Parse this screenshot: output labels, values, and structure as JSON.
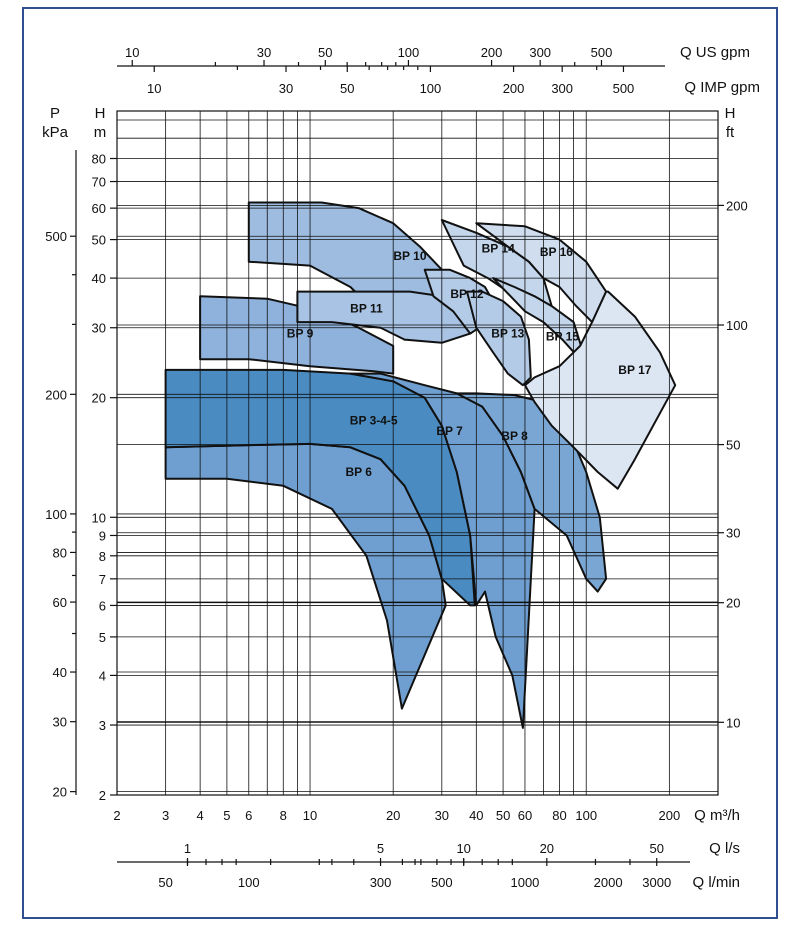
{
  "chart_data": {
    "type": "area",
    "title": "",
    "x_axes": {
      "bottom_primary": {
        "unit": "Q m³/h",
        "scale": "log",
        "range": [
          2,
          300
        ],
        "ticks": [
          "2",
          "3",
          "4",
          "5",
          "6",
          "8",
          "10",
          "20",
          "30",
          "40",
          "50",
          "60",
          "80",
          "100",
          "200"
        ]
      },
      "bottom_ls": {
        "unit": "Q l/s",
        "ticks": [
          "1",
          "5",
          "10",
          "20",
          "50"
        ]
      },
      "bottom_lmin": {
        "unit": "Q l/min",
        "ticks": [
          "50",
          "100",
          "300",
          "500",
          "1000",
          "2000",
          "3000"
        ]
      },
      "top_us": {
        "unit": "Q US gpm",
        "ticks": [
          "10",
          "30",
          "50",
          "100",
          "200",
          "300",
          "500"
        ]
      },
      "top_imp": {
        "unit": "Q IMP gpm",
        "ticks": [
          "10",
          "30",
          "50",
          "100",
          "200",
          "300",
          "500"
        ]
      }
    },
    "y_axes": {
      "left_pressure": {
        "unit_top": "P",
        "unit_bottom": "kPa",
        "ticks": [
          "20",
          "30",
          "40",
          "60",
          "80",
          "100",
          "200",
          "500"
        ]
      },
      "left_head": {
        "unit_top": "H",
        "unit_bottom": "m",
        "scale": "log",
        "range": [
          2,
          100
        ],
        "ticks": [
          "2",
          "3",
          "4",
          "5",
          "6",
          "7",
          "8",
          "9",
          "10",
          "20",
          "30",
          "40",
          "50",
          "60",
          "70",
          "80"
        ]
      },
      "right_head": {
        "unit_top": "H",
        "unit_bottom": "ft",
        "ticks": [
          "10",
          "20",
          "30",
          "50",
          "100",
          "200"
        ]
      }
    },
    "series": [
      {
        "name": "BP 6",
        "color": "#6f9fd0",
        "label_at": [
          15,
          13
        ],
        "outline": [
          [
            3,
            12.5
          ],
          [
            5,
            12.5
          ],
          [
            8,
            12
          ],
          [
            12,
            10.5
          ],
          [
            16,
            8
          ],
          [
            19,
            5.5
          ],
          [
            21.5,
            3.3
          ],
          [
            31,
            6
          ],
          [
            30,
            7
          ],
          [
            27,
            9
          ],
          [
            22,
            12
          ],
          [
            18,
            14
          ],
          [
            14,
            15
          ],
          [
            10,
            15.3
          ],
          [
            6,
            15.2
          ],
          [
            3,
            15
          ]
        ]
      },
      {
        "name": "BP 3-4-5",
        "color": "#4a8cc2",
        "label_at": [
          17,
          17.5
        ],
        "outline": [
          [
            3,
            15
          ],
          [
            6,
            15.2
          ],
          [
            10,
            15.3
          ],
          [
            14,
            15
          ],
          [
            18,
            14
          ],
          [
            22,
            12
          ],
          [
            27,
            9
          ],
          [
            30,
            7
          ],
          [
            38,
            6
          ],
          [
            39.5,
            6
          ],
          [
            38,
            9
          ],
          [
            34,
            13
          ],
          [
            30,
            17
          ],
          [
            26,
            20
          ],
          [
            20,
            22
          ],
          [
            14,
            23
          ],
          [
            8,
            23.5
          ],
          [
            3,
            23.5
          ]
        ]
      },
      {
        "name": "BP 7",
        "color": "#6f9fd0",
        "label_at": [
          32,
          16.5
        ],
        "outline": [
          [
            14,
            23
          ],
          [
            20,
            22
          ],
          [
            26,
            20
          ],
          [
            30,
            17
          ],
          [
            34,
            13
          ],
          [
            38,
            9
          ],
          [
            40,
            6
          ],
          [
            43,
            6.5
          ],
          [
            47,
            5
          ],
          [
            54,
            4
          ],
          [
            59,
            2.95
          ],
          [
            65,
            10.5
          ],
          [
            58,
            13
          ],
          [
            50,
            16
          ],
          [
            42,
            19
          ],
          [
            34,
            20.5
          ],
          [
            26,
            21.5
          ],
          [
            18,
            23
          ]
        ]
      },
      {
        "name": "BP 8",
        "color": "#7aa6d3",
        "label_at": [
          55,
          16
        ],
        "outline": [
          [
            34,
            20.5
          ],
          [
            42,
            19
          ],
          [
            50,
            16
          ],
          [
            58,
            13
          ],
          [
            65,
            10.5
          ],
          [
            85,
            9
          ],
          [
            100,
            7
          ],
          [
            110,
            6.5
          ],
          [
            118,
            7
          ],
          [
            112,
            10
          ],
          [
            100,
            13
          ],
          [
            85,
            17
          ],
          [
            70,
            19.5
          ],
          [
            55,
            20.3
          ],
          [
            40,
            20.5
          ]
        ]
      },
      {
        "name": "BP 9",
        "color": "#8fb2dc",
        "label_at": [
          9.2,
          29
        ],
        "outline": [
          [
            4,
            36
          ],
          [
            7,
            35.5
          ],
          [
            11,
            33
          ],
          [
            15,
            30
          ],
          [
            20,
            27
          ],
          [
            20,
            23
          ],
          [
            17,
            23.3
          ],
          [
            10,
            24
          ],
          [
            6,
            25
          ],
          [
            4,
            25
          ]
        ]
      },
      {
        "name": "BP 10",
        "color": "#9dbce0",
        "label_at": [
          23,
          45.5
        ],
        "outline": [
          [
            6,
            62
          ],
          [
            11,
            62
          ],
          [
            15,
            60
          ],
          [
            20,
            55
          ],
          [
            25,
            48
          ],
          [
            30,
            42
          ],
          [
            34,
            38
          ],
          [
            30,
            33
          ],
          [
            26,
            30
          ],
          [
            22,
            28
          ],
          [
            18,
            32
          ],
          [
            14,
            38
          ],
          [
            10,
            43
          ],
          [
            6,
            44
          ]
        ]
      },
      {
        "name": "BP 11",
        "color": "#a8c3e3",
        "label_at": [
          16,
          33.5
        ],
        "outline": [
          [
            9,
            37
          ],
          [
            17,
            37
          ],
          [
            23,
            37
          ],
          [
            30,
            36
          ],
          [
            37,
            34
          ],
          [
            43,
            31
          ],
          [
            38,
            29
          ],
          [
            30,
            27.5
          ],
          [
            22,
            28
          ],
          [
            18,
            30
          ],
          [
            12,
            31
          ],
          [
            9,
            31
          ]
        ]
      },
      {
        "name": "BP 12",
        "color": "#b3cbe7",
        "label_at": [
          37,
          36.5
        ],
        "outline": [
          [
            26,
            42
          ],
          [
            32,
            42
          ],
          [
            38,
            40
          ],
          [
            43,
            38
          ],
          [
            47,
            34
          ],
          [
            44,
            31
          ],
          [
            38,
            29
          ],
          [
            33,
            33
          ],
          [
            28,
            36
          ]
        ]
      },
      {
        "name": "BP 13",
        "color": "#b3cbe7",
        "label_at": [
          52,
          29
        ],
        "outline": [
          [
            37,
            37
          ],
          [
            42,
            37
          ],
          [
            50,
            35
          ],
          [
            58,
            32
          ],
          [
            62,
            28
          ],
          [
            63,
            22.5
          ],
          [
            59,
            21.5
          ],
          [
            52,
            23
          ],
          [
            46,
            26
          ],
          [
            40,
            30
          ]
        ]
      },
      {
        "name": "BP 14",
        "color": "#c4d6ec",
        "label_at": [
          48,
          47.5
        ],
        "outline": [
          [
            30,
            56
          ],
          [
            40,
            52
          ],
          [
            52,
            48
          ],
          [
            62,
            44
          ],
          [
            70,
            40
          ],
          [
            75,
            34
          ],
          [
            68,
            32
          ],
          [
            60,
            34
          ],
          [
            52,
            37
          ],
          [
            44,
            40
          ],
          [
            36,
            43
          ]
        ]
      },
      {
        "name": "BP 15",
        "color": "#c4d6ec",
        "label_at": [
          82,
          28.5
        ],
        "outline": [
          [
            46,
            40
          ],
          [
            55,
            38
          ],
          [
            65,
            36
          ],
          [
            75,
            34
          ],
          [
            90,
            31
          ],
          [
            105,
            22
          ],
          [
            95,
            25
          ],
          [
            82,
            28
          ],
          [
            70,
            31
          ],
          [
            60,
            33
          ]
        ]
      },
      {
        "name": "BP 16",
        "color": "#cfddef",
        "label_at": [
          78,
          46.5
        ],
        "outline": [
          [
            40,
            55
          ],
          [
            60,
            54
          ],
          [
            80,
            50
          ],
          [
            100,
            44
          ],
          [
            118,
            37
          ],
          [
            120,
            29
          ],
          [
            105,
            31
          ],
          [
            92,
            34
          ],
          [
            80,
            38
          ],
          [
            70,
            40
          ],
          [
            62,
            44
          ],
          [
            52,
            48
          ]
        ]
      },
      {
        "name": "BP 17",
        "color": "#dce6f3",
        "label_at": [
          150,
          23.5
        ],
        "outline": [
          [
            120,
            37
          ],
          [
            150,
            32
          ],
          [
            185,
            26
          ],
          [
            210,
            21.5
          ],
          [
            150,
            14
          ],
          [
            130,
            11.8
          ],
          [
            110,
            13
          ],
          [
            90,
            15
          ],
          [
            75,
            17
          ],
          [
            65,
            19.5
          ],
          [
            60,
            21.5
          ],
          [
            65,
            22.5
          ],
          [
            80,
            24
          ],
          [
            95,
            27
          ],
          [
            105,
            31
          ],
          [
            118,
            37
          ]
        ]
      }
    ]
  }
}
